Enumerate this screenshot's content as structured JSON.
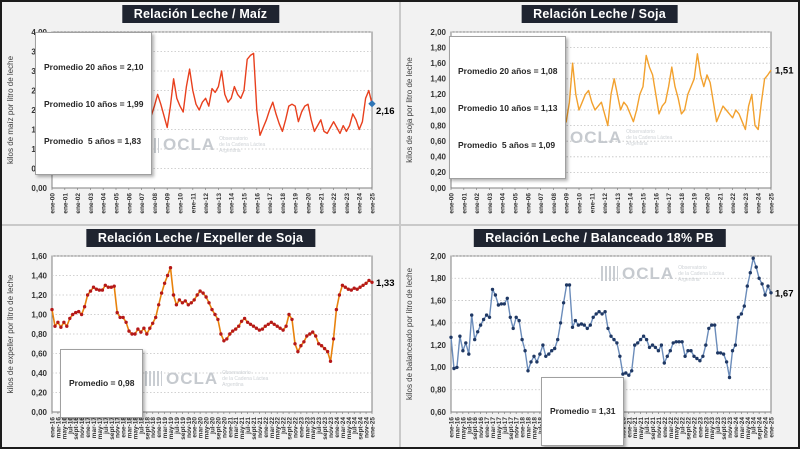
{
  "watermark": {
    "logo": "OCLA",
    "line1": "Observatorio",
    "line2": "de la Cadena Láctea",
    "line3": "Argentina"
  },
  "chart_data": [
    {
      "type": "line",
      "title": "Relación Leche / Maíz",
      "ylabel": "kilos de maíz por litro de leche",
      "ylim": [
        0,
        4
      ],
      "yticks": [
        0,
        0.5,
        1,
        1.5,
        2,
        2.5,
        3,
        3.5,
        4
      ],
      "ytick_labels": [
        "0,00",
        "0,50",
        "1,00",
        "1,50",
        "2,00",
        "2,50",
        "3,00",
        "3,50",
        "4,00"
      ],
      "x_tick_labels": [
        "ene-00",
        "ene-01",
        "ene-02",
        "ene-03",
        "ene-04",
        "ene-05",
        "ene-06",
        "ene-07",
        "ene-08",
        "ene-09",
        "ene-10",
        "ene-11",
        "ene-12",
        "ene-13",
        "ene-14",
        "ene-15",
        "ene-16",
        "ene-17",
        "ene-18",
        "ene-19",
        "ene-20",
        "ene-21",
        "ene-22",
        "ene-23",
        "ene-24",
        "ene-25"
      ],
      "legend_lines": [
        "Promedio 20 años = 2,10",
        "Promedio 10 años = 1,99",
        "Promedio  5 años = 1,83"
      ],
      "line_color": "#e8401e",
      "line_width": 1.4,
      "marker_color": null,
      "end_label": "2,16",
      "end_marker_color": "#2e75b6",
      "values": [
        1.6,
        1.75,
        2.05,
        1.85,
        2.1,
        2.4,
        2.1,
        1.75,
        1.3,
        1.05,
        1.1,
        1.15,
        1.1,
        1.3,
        1.55,
        1.75,
        1.9,
        2.1,
        1.75,
        1.95,
        2.2,
        2.6,
        2.35,
        2.2,
        2.15,
        2.4,
        2.5,
        2.3,
        1.8,
        1.4,
        1.75,
        1.85,
        2.1,
        2.4,
        2.15,
        1.85,
        1.55,
        2.1,
        2.8,
        2.3,
        2.1,
        1.95,
        2.6,
        3.05,
        2.5,
        2.15,
        2.0,
        2.2,
        2.3,
        2.1,
        2.55,
        2.45,
        2.6,
        3.0,
        2.4,
        2.2,
        2.3,
        2.6,
        2.4,
        2.3,
        2.5,
        3.3,
        3.4,
        3.45,
        2.0,
        1.35,
        1.55,
        1.75,
        2.0,
        2.2,
        1.9,
        1.65,
        1.45,
        1.75,
        2.1,
        2.15,
        2.1,
        1.7,
        1.95,
        2.1,
        2.15,
        1.75,
        1.45,
        1.6,
        1.75,
        1.45,
        1.4,
        1.55,
        1.7,
        1.55,
        1.4,
        1.6,
        1.45,
        1.6,
        1.9,
        1.75,
        1.5,
        1.7,
        2.3,
        2.5,
        2.16
      ]
    },
    {
      "type": "line",
      "title": "Relación Leche / Soja",
      "ylabel": "kilos de soja por litro de leche",
      "ylim": [
        0,
        2
      ],
      "yticks": [
        0,
        0.2,
        0.4,
        0.6,
        0.8,
        1,
        1.2,
        1.4,
        1.6,
        1.8,
        2
      ],
      "ytick_labels": [
        "0,00",
        "0,20",
        "0,40",
        "0,60",
        "0,80",
        "1,00",
        "1,20",
        "1,40",
        "1,60",
        "1,80",
        "2,00"
      ],
      "x_tick_labels": [
        "ene-00",
        "ene-01",
        "ene-02",
        "ene-03",
        "ene-04",
        "ene-05",
        "ene-06",
        "ene-07",
        "ene-08",
        "ene-09",
        "ene-10",
        "ene-11",
        "ene-12",
        "ene-13",
        "ene-14",
        "ene-15",
        "ene-16",
        "ene-17",
        "ene-18",
        "ene-19",
        "ene-20",
        "ene-21",
        "ene-22",
        "ene-23",
        "ene-24",
        "ene-25"
      ],
      "legend_lines": [
        "Promedio 20 años = 1,08",
        "Promedio 10 años = 1,13",
        "Promedio  5 años = 1,09"
      ],
      "line_color": "#f2a12e",
      "line_width": 1.4,
      "marker_color": null,
      "end_label": "1,51",
      "end_marker_color": null,
      "values": [
        0.78,
        0.85,
        0.95,
        0.8,
        0.9,
        1.25,
        1.05,
        0.85,
        0.7,
        0.57,
        0.6,
        0.62,
        0.58,
        0.65,
        0.75,
        0.8,
        0.75,
        0.85,
        0.95,
        1.0,
        1.0,
        1.05,
        1.0,
        0.95,
        1.0,
        1.05,
        1.0,
        0.95,
        0.9,
        0.8,
        1.05,
        1.3,
        1.1,
        0.85,
        0.95,
        0.8,
        0.85,
        1.1,
        1.6,
        1.2,
        1.0,
        1.1,
        1.2,
        1.25,
        1.1,
        1.0,
        1.05,
        1.1,
        0.95,
        0.8,
        1.2,
        1.4,
        1.2,
        1.0,
        1.1,
        1.05,
        0.95,
        0.85,
        1.0,
        1.2,
        1.3,
        1.7,
        1.55,
        1.45,
        1.2,
        0.95,
        1.05,
        1.1,
        1.3,
        1.55,
        1.3,
        1.15,
        0.95,
        1.0,
        1.2,
        1.3,
        1.4,
        1.72,
        1.45,
        1.3,
        1.45,
        1.35,
        1.1,
        0.85,
        0.95,
        1.05,
        1.0,
        0.95,
        0.9,
        1.0,
        0.95,
        0.85,
        0.75,
        1.05,
        1.2,
        0.8,
        0.75,
        1.1,
        1.4,
        1.45,
        1.51
      ]
    },
    {
      "type": "line",
      "title": "Relación Leche / Expeller de Soja",
      "ylabel": "kilos de expeller por litro de leche",
      "ylim": [
        0,
        1.6
      ],
      "yticks": [
        0,
        0.2,
        0.4,
        0.6,
        0.8,
        1,
        1.2,
        1.4,
        1.6
      ],
      "ytick_labels": [
        "0,00",
        "0,20",
        "0,40",
        "0,60",
        "0,80",
        "1,00",
        "1,20",
        "1,40",
        "1,60"
      ],
      "x_tick_labels": [
        "ene-16",
        "mar-16",
        "may-16",
        "jul-16",
        "sept-16",
        "nov-16",
        "ene-17",
        "mar-17",
        "may-17",
        "jul-17",
        "sept-17",
        "nov-17",
        "ene-18",
        "mar-18",
        "may-18",
        "jul-18",
        "sept-18",
        "nov-18",
        "ene-19",
        "mar-19",
        "may-19",
        "jul-19",
        "sept-19",
        "nov-19",
        "ene-20",
        "mar-20",
        "may-20",
        "jul-20",
        "sept-20",
        "nov-20",
        "ene-21",
        "mar-21",
        "may-21",
        "jul-21",
        "sept-21",
        "nov-21",
        "ene-22",
        "mar-22",
        "may-22",
        "jul-22",
        "sept-22",
        "nov-22",
        "ene-23",
        "mar-23",
        "may-23",
        "jul-23",
        "sept-23",
        "nov-23",
        "ene-24",
        "mar-24",
        "may-24",
        "jul-24",
        "sept-24",
        "nov-24",
        "ene-25"
      ],
      "legend_lines": [
        "Promedio = 0,98"
      ],
      "line_color": "#e8820c",
      "line_width": 1.6,
      "marker_color": "#b51818",
      "end_label": "1,33",
      "end_marker_color": null,
      "values": [
        1.05,
        0.88,
        0.92,
        0.87,
        0.92,
        0.88,
        0.96,
        1.0,
        1.02,
        1.03,
        1.0,
        1.08,
        1.2,
        1.24,
        1.28,
        1.26,
        1.25,
        1.25,
        1.3,
        1.28,
        1.28,
        1.29,
        1.02,
        0.97,
        0.97,
        0.92,
        0.83,
        0.8,
        0.8,
        0.85,
        0.82,
        0.86,
        0.8,
        0.86,
        0.91,
        0.97,
        1.1,
        1.22,
        1.32,
        1.4,
        1.48,
        1.2,
        1.1,
        1.15,
        1.12,
        1.14,
        1.1,
        1.12,
        1.15,
        1.2,
        1.24,
        1.22,
        1.18,
        1.12,
        1.05,
        1.0,
        0.95,
        0.8,
        0.73,
        0.75,
        0.8,
        0.83,
        0.85,
        0.88,
        0.93,
        0.96,
        0.92,
        0.9,
        0.88,
        0.86,
        0.84,
        0.85,
        0.88,
        0.9,
        0.92,
        0.9,
        0.88,
        0.86,
        0.84,
        0.88,
        1.0,
        0.95,
        0.7,
        0.62,
        0.68,
        0.72,
        0.78,
        0.8,
        0.82,
        0.78,
        0.7,
        0.68,
        0.65,
        0.62,
        0.52,
        0.75,
        1.05,
        1.2,
        1.3,
        1.28,
        1.26,
        1.25,
        1.27,
        1.26,
        1.28,
        1.3,
        1.32,
        1.35,
        1.33
      ]
    },
    {
      "type": "line",
      "title": "Relación Leche / Balanceado 18% PB",
      "ylabel": "kilos de balanceado por litro de leche",
      "ylim": [
        0.6,
        2
      ],
      "yticks": [
        0.6,
        0.8,
        1,
        1.2,
        1.4,
        1.6,
        1.8,
        2
      ],
      "ytick_labels": [
        "0,60",
        "0,80",
        "1,00",
        "1,20",
        "1,40",
        "1,60",
        "1,80",
        "2,00"
      ],
      "x_tick_labels": [
        "ene-16",
        "mar-16",
        "may-16",
        "jul-16",
        "sept-16",
        "nov-16",
        "ene-17",
        "mar-17",
        "may-17",
        "jul-17",
        "sept-17",
        "nov-17",
        "ene-18",
        "mar-18",
        "may-18",
        "jul-18",
        "sept-18",
        "nov-18",
        "ene-19",
        "mar-19",
        "may-19",
        "jul-19",
        "sept-19",
        "nov-19",
        "ene-20",
        "mar-20",
        "may-20",
        "jul-20",
        "sept-20",
        "nov-20",
        "ene-21",
        "mar-21",
        "may-21",
        "jul-21",
        "sept-21",
        "nov-21",
        "ene-22",
        "mar-22",
        "may-22",
        "jul-22",
        "sept-22",
        "nov-22",
        "ene-23",
        "mar-23",
        "may-23",
        "jul-23",
        "sept-23",
        "nov-23",
        "ene-24",
        "mar-24",
        "may-24",
        "jul-24",
        "sept-24",
        "nov-24",
        "ene-25"
      ],
      "legend_lines": [
        "Promedio = 1,31"
      ],
      "line_color": "#6b8cba",
      "line_width": 1.4,
      "marker_color": "#1f3864",
      "end_label": "1,67",
      "end_marker_color": null,
      "values": [
        1.27,
        0.99,
        1.0,
        1.28,
        1.15,
        1.22,
        1.12,
        1.47,
        1.25,
        1.32,
        1.38,
        1.43,
        1.47,
        1.45,
        1.7,
        1.65,
        1.56,
        1.57,
        1.57,
        1.62,
        1.45,
        1.35,
        1.45,
        1.42,
        1.25,
        1.15,
        0.97,
        1.05,
        1.1,
        1.05,
        1.12,
        1.2,
        1.1,
        1.12,
        1.15,
        1.17,
        1.25,
        1.4,
        1.58,
        1.74,
        1.74,
        1.36,
        1.42,
        1.38,
        1.39,
        1.38,
        1.35,
        1.38,
        1.45,
        1.48,
        1.5,
        1.48,
        1.5,
        1.35,
        1.28,
        1.25,
        1.22,
        1.1,
        0.94,
        0.95,
        0.93,
        0.97,
        1.2,
        1.22,
        1.25,
        1.28,
        1.25,
        1.18,
        1.2,
        1.18,
        1.15,
        1.2,
        1.04,
        1.1,
        1.15,
        1.22,
        1.23,
        1.23,
        1.23,
        1.1,
        1.15,
        1.15,
        1.1,
        1.08,
        1.06,
        1.1,
        1.2,
        1.35,
        1.38,
        1.38,
        1.13,
        1.13,
        1.12,
        1.05,
        0.91,
        1.15,
        1.2,
        1.45,
        1.48,
        1.55,
        1.73,
        1.85,
        1.98,
        1.9,
        1.8,
        1.75,
        1.65,
        1.73,
        1.67
      ]
    }
  ]
}
